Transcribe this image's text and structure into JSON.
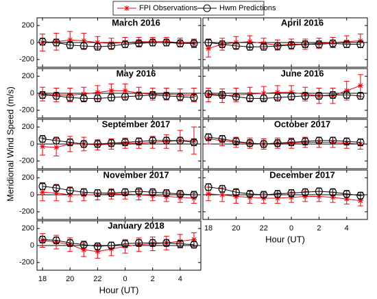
{
  "figure": {
    "ylabel": "Meridional Wind Speed (m/s)"
  },
  "chart_data": [
    {
      "type": "line",
      "title": "March 2016",
      "x": [
        18,
        19,
        20,
        21,
        22,
        23,
        24,
        25,
        26,
        27,
        28,
        29
      ],
      "xlim": [
        17.6,
        29.5
      ],
      "xticks": [
        18,
        20,
        22,
        {
          "value": 24,
          "label": "0"
        },
        {
          "value": 26,
          "label": "2"
        },
        {
          "value": 28,
          "label": "4"
        }
      ],
      "ylim": [
        -290,
        290
      ],
      "yticks": [
        -200,
        0,
        200
      ],
      "series": [
        {
          "name": "FPI Observations",
          "color": "#e8000b",
          "marker": "asterisk",
          "values": [
            0,
            10,
            30,
            20,
            0,
            -10,
            0,
            10,
            10,
            10,
            0,
            -10
          ],
          "errors": [
            100,
            100,
            100,
            90,
            70,
            60,
            60,
            50,
            50,
            50,
            50,
            50
          ]
        },
        {
          "name": "Hwm Predictions",
          "color": "#000000",
          "marker": "circle",
          "values": [
            10,
            0,
            -30,
            -40,
            -50,
            -40,
            -20,
            -10,
            0,
            0,
            -10,
            -10
          ],
          "errors": [
            40,
            40,
            40,
            40,
            40,
            40,
            40,
            40,
            40,
            40,
            40,
            40
          ]
        }
      ]
    },
    {
      "type": "line",
      "title": "April 2016",
      "x": [
        18,
        19,
        20,
        21,
        22,
        23,
        24,
        25,
        26,
        27,
        28,
        29
      ],
      "xlim": [
        17.6,
        29.5
      ],
      "xticks": [
        18,
        20,
        22,
        {
          "value": 24,
          "label": "0"
        },
        {
          "value": 26,
          "label": "2"
        },
        {
          "value": 28,
          "label": "4"
        }
      ],
      "ylim": [
        -290,
        290
      ],
      "yticks": [
        -200,
        0,
        200
      ],
      "series": [
        {
          "name": "FPI Observations",
          "color": "#e8000b",
          "marker": "asterisk",
          "values": [
            -70,
            -20,
            0,
            10,
            -10,
            -30,
            -20,
            -20,
            -10,
            0,
            10,
            20
          ],
          "errors": [
            100,
            70,
            70,
            70,
            60,
            60,
            60,
            60,
            60,
            60,
            70,
            80
          ]
        },
        {
          "name": "Hwm Predictions",
          "color": "#000000",
          "marker": "circle",
          "values": [
            0,
            -20,
            -40,
            -50,
            -50,
            -40,
            -30,
            -20,
            -20,
            -10,
            -20,
            -20
          ],
          "errors": [
            40,
            40,
            40,
            40,
            40,
            40,
            40,
            40,
            40,
            40,
            40,
            40
          ]
        }
      ]
    },
    {
      "type": "line",
      "title": "May 2016",
      "x": [
        18,
        19,
        20,
        21,
        22,
        23,
        24,
        25,
        26,
        27,
        28,
        29
      ],
      "xlim": [
        17.6,
        29.5
      ],
      "xticks": [
        18,
        20,
        22,
        {
          "value": 24,
          "label": "0"
        },
        {
          "value": 26,
          "label": "2"
        },
        {
          "value": 28,
          "label": "4"
        }
      ],
      "ylim": [
        -290,
        290
      ],
      "yticks": [
        -200,
        0,
        200
      ],
      "series": [
        {
          "name": "FPI Observations",
          "color": "#e8000b",
          "marker": "asterisk",
          "values": [
            -10,
            -20,
            -20,
            -10,
            10,
            30,
            30,
            0,
            -10,
            -10,
            -20,
            -20
          ],
          "errors": [
            80,
            80,
            80,
            80,
            80,
            80,
            80,
            70,
            70,
            70,
            70,
            80
          ]
        },
        {
          "name": "Hwm Predictions",
          "color": "#000000",
          "marker": "circle",
          "values": [
            -20,
            -30,
            -50,
            -60,
            -60,
            -50,
            -40,
            -30,
            -20,
            -30,
            -40,
            -50
          ],
          "errors": [
            40,
            40,
            40,
            40,
            40,
            40,
            40,
            40,
            40,
            40,
            40,
            40
          ]
        }
      ]
    },
    {
      "type": "line",
      "title": "June 2016",
      "x": [
        18,
        19,
        20,
        21,
        22,
        23,
        24,
        25,
        26,
        27,
        28,
        29
      ],
      "xlim": [
        17.6,
        29.5
      ],
      "xticks": [
        18,
        20,
        22,
        {
          "value": 24,
          "label": "0"
        },
        {
          "value": 26,
          "label": "2"
        },
        {
          "value": 28,
          "label": "4"
        }
      ],
      "ylim": [
        -290,
        290
      ],
      "yticks": [
        -200,
        0,
        200
      ],
      "series": [
        {
          "name": "FPI Observations",
          "color": "#e8000b",
          "marker": "asterisk",
          "values": [
            -20,
            -30,
            -20,
            -10,
            0,
            10,
            10,
            -10,
            -30,
            -30,
            30,
            90
          ],
          "errors": [
            80,
            80,
            80,
            80,
            80,
            80,
            80,
            80,
            90,
            90,
            110,
            130
          ]
        },
        {
          "name": "Hwm Predictions",
          "color": "#000000",
          "marker": "circle",
          "values": [
            -10,
            -20,
            -40,
            -60,
            -60,
            -50,
            -40,
            -30,
            -30,
            -20,
            -20,
            -30
          ],
          "errors": [
            40,
            40,
            40,
            40,
            40,
            40,
            40,
            40,
            40,
            40,
            40,
            40
          ]
        }
      ]
    },
    {
      "type": "line",
      "title": "September 2017",
      "x": [
        18,
        19,
        20,
        21,
        22,
        23,
        24,
        25,
        26,
        27,
        28,
        29
      ],
      "xlim": [
        17.6,
        29.5
      ],
      "xticks": [
        18,
        20,
        22,
        {
          "value": 24,
          "label": "0"
        },
        {
          "value": 26,
          "label": "2"
        },
        {
          "value": 28,
          "label": "4"
        }
      ],
      "ylim": [
        -290,
        290
      ],
      "yticks": [
        -200,
        0,
        200
      ],
      "series": [
        {
          "name": "FPI Observations",
          "color": "#e8000b",
          "marker": "asterisk",
          "values": [
            -30,
            -40,
            0,
            0,
            -10,
            0,
            10,
            10,
            20,
            30,
            40,
            40
          ],
          "errors": [
            100,
            100,
            90,
            80,
            60,
            60,
            60,
            60,
            70,
            80,
            120,
            160
          ]
        },
        {
          "name": "Hwm Predictions",
          "color": "#000000",
          "marker": "circle",
          "values": [
            60,
            40,
            20,
            0,
            0,
            10,
            20,
            30,
            40,
            40,
            40,
            20
          ],
          "errors": [
            40,
            40,
            40,
            40,
            40,
            40,
            40,
            40,
            40,
            40,
            40,
            40
          ]
        }
      ]
    },
    {
      "type": "line",
      "title": "October 2017",
      "x": [
        18,
        19,
        20,
        21,
        22,
        23,
        24,
        25,
        26,
        27,
        28,
        29
      ],
      "xlim": [
        17.6,
        29.5
      ],
      "xticks": [
        18,
        20,
        22,
        {
          "value": 24,
          "label": "0"
        },
        {
          "value": 26,
          "label": "2"
        },
        {
          "value": 28,
          "label": "4"
        }
      ],
      "ylim": [
        -290,
        290
      ],
      "yticks": [
        -200,
        0,
        200
      ],
      "series": [
        {
          "name": "FPI Observations",
          "color": "#e8000b",
          "marker": "asterisk",
          "values": [
            60,
            40,
            20,
            10,
            0,
            10,
            10,
            20,
            20,
            20,
            10,
            0
          ],
          "errors": [
            60,
            60,
            60,
            60,
            60,
            60,
            60,
            60,
            60,
            60,
            60,
            60
          ]
        },
        {
          "name": "Hwm Predictions",
          "color": "#000000",
          "marker": "circle",
          "values": [
            80,
            60,
            30,
            10,
            0,
            10,
            20,
            30,
            40,
            40,
            30,
            20
          ],
          "errors": [
            40,
            40,
            40,
            40,
            40,
            40,
            40,
            40,
            40,
            40,
            40,
            40
          ]
        }
      ]
    },
    {
      "type": "line",
      "title": "November 2017",
      "x": [
        18,
        19,
        20,
        21,
        22,
        23,
        24,
        25,
        26,
        27,
        28,
        29
      ],
      "xlim": [
        17.6,
        29.5
      ],
      "xticks": [
        18,
        20,
        22,
        {
          "value": 24,
          "label": "0"
        },
        {
          "value": 26,
          "label": "2"
        },
        {
          "value": 28,
          "label": "4"
        }
      ],
      "ylim": [
        -290,
        290
      ],
      "yticks": [
        -200,
        0,
        200
      ],
      "series": [
        {
          "name": "FPI Observations",
          "color": "#e8000b",
          "marker": "asterisk",
          "values": [
            30,
            20,
            0,
            0,
            0,
            10,
            10,
            0,
            -10,
            -20,
            -30,
            -40
          ],
          "errors": [
            100,
            90,
            80,
            70,
            60,
            60,
            60,
            60,
            60,
            60,
            60,
            60
          ]
        },
        {
          "name": "Hwm Predictions",
          "color": "#000000",
          "marker": "circle",
          "values": [
            100,
            80,
            50,
            30,
            20,
            20,
            30,
            40,
            30,
            20,
            10,
            0
          ],
          "errors": [
            40,
            40,
            40,
            40,
            40,
            40,
            40,
            40,
            40,
            40,
            40,
            40
          ]
        }
      ]
    },
    {
      "type": "line",
      "title": "December 2017",
      "x": [
        18,
        19,
        20,
        21,
        22,
        23,
        24,
        25,
        26,
        27,
        28,
        29
      ],
      "xlim": [
        17.6,
        29.5
      ],
      "xticks": [
        18,
        20,
        22,
        {
          "value": 24,
          "label": "0"
        },
        {
          "value": 26,
          "label": "2"
        },
        {
          "value": 28,
          "label": "4"
        }
      ],
      "ylim": [
        -290,
        290
      ],
      "yticks": [
        -200,
        0,
        200
      ],
      "xlabel": "Hour (UT)",
      "series": [
        {
          "name": "FPI Observations",
          "color": "#e8000b",
          "marker": "asterisk",
          "values": [
            10,
            0,
            -20,
            -30,
            -40,
            -40,
            -30,
            -20,
            -20,
            -30,
            -50,
            -70
          ],
          "errors": [
            80,
            80,
            80,
            70,
            60,
            60,
            60,
            60,
            60,
            60,
            60,
            60
          ]
        },
        {
          "name": "Hwm Predictions",
          "color": "#000000",
          "marker": "circle",
          "values": [
            90,
            70,
            30,
            10,
            0,
            10,
            20,
            30,
            40,
            30,
            10,
            -10
          ],
          "errors": [
            40,
            40,
            40,
            40,
            40,
            40,
            40,
            40,
            40,
            40,
            40,
            40
          ]
        }
      ]
    },
    {
      "type": "line",
      "title": "January 2018",
      "x": [
        18,
        19,
        20,
        21,
        22,
        23,
        24,
        25,
        26,
        27,
        28,
        29
      ],
      "xlim": [
        17.6,
        29.5
      ],
      "xticks": [
        18,
        20,
        22,
        {
          "value": 24,
          "label": "0"
        },
        {
          "value": 26,
          "label": "2"
        },
        {
          "value": 28,
          "label": "4"
        }
      ],
      "ylim": [
        -290,
        290
      ],
      "yticks": [
        -200,
        0,
        200
      ],
      "xlabel": "Hour (UT)",
      "series": [
        {
          "name": "FPI Observations",
          "color": "#e8000b",
          "marker": "asterisk",
          "values": [
            60,
            40,
            10,
            -50,
            -70,
            -40,
            -10,
            10,
            20,
            30,
            50,
            70
          ],
          "errors": [
            80,
            80,
            80,
            80,
            80,
            80,
            80,
            80,
            80,
            80,
            80,
            80
          ]
        },
        {
          "name": "Hwm Predictions",
          "color": "#000000",
          "marker": "circle",
          "values": [
            70,
            60,
            30,
            10,
            -10,
            0,
            20,
            30,
            30,
            30,
            20,
            10
          ],
          "errors": [
            40,
            40,
            40,
            40,
            40,
            40,
            40,
            40,
            40,
            40,
            40,
            40
          ]
        }
      ]
    }
  ]
}
